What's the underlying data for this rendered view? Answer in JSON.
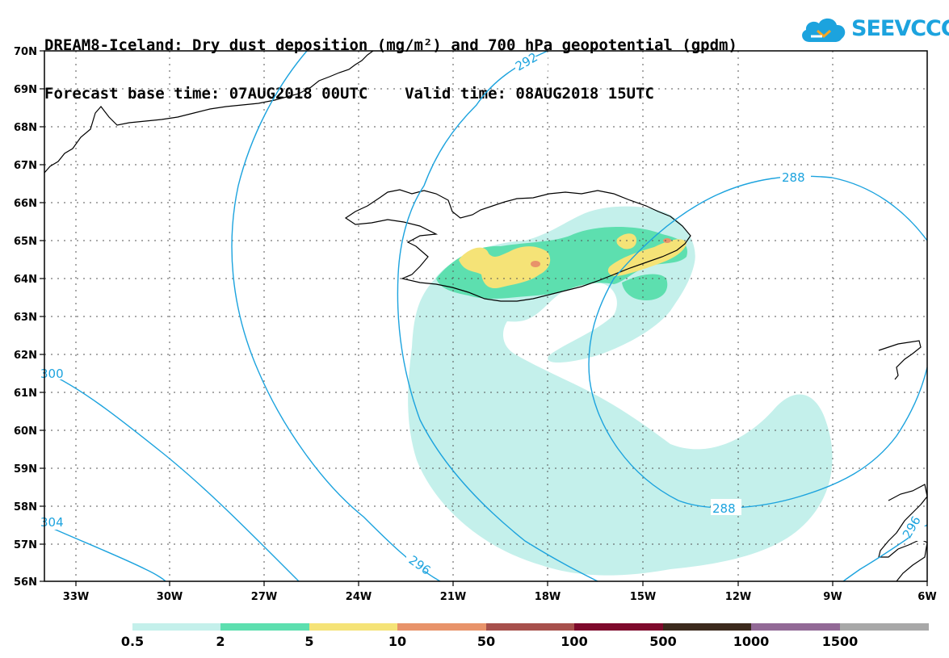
{
  "title": {
    "line1": "DREAM8-Iceland: Dry dust deposition (mg/m²) and 700 hPa geopotential (gpdm)",
    "line2": "Forecast base time: 07AUG2018 00UTC    Valid time: 08AUG2018 15UTC"
  },
  "logo": {
    "text": "SEEVCCC",
    "icon": "cloud-icon"
  },
  "map": {
    "lat_labels": [
      "70N",
      "69N",
      "68N",
      "67N",
      "66N",
      "65N",
      "64N",
      "63N",
      "62N",
      "61N",
      "60N",
      "59N",
      "58N",
      "57N",
      "56N"
    ],
    "lon_labels": [
      "33W",
      "30W",
      "27W",
      "24W",
      "21W",
      "18W",
      "15W",
      "12W",
      "9W",
      "6W"
    ],
    "contour_labels": [
      "292",
      "288",
      "288",
      "296",
      "300",
      "304",
      "296"
    ],
    "contour_color": "#1ca3de",
    "grid": true
  },
  "colorbar": {
    "labels": [
      "0.5",
      "2",
      "5",
      "10",
      "50",
      "100",
      "500",
      "1000",
      "1500"
    ],
    "colors": [
      "#c4f0eb",
      "#5ddfaf",
      "#f5e377",
      "#e8936a",
      "#a7504c",
      "#7e0a2c",
      "#3c2a1d",
      "#926996",
      "#a8a8a8"
    ]
  }
}
